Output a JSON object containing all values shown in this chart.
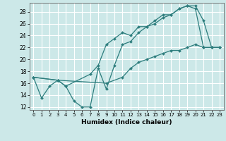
{
  "bg_color": "#cce8e8",
  "grid_color": "#ffffff",
  "line_color": "#2d7d7d",
  "xlabel": "Humidex (Indice chaleur)",
  "xlim": [
    -0.5,
    23.5
  ],
  "ylim": [
    11.5,
    29.5
  ],
  "yticks": [
    12,
    14,
    16,
    18,
    20,
    22,
    24,
    26,
    28
  ],
  "xticks": [
    0,
    1,
    2,
    3,
    4,
    5,
    6,
    7,
    8,
    9,
    10,
    11,
    12,
    13,
    14,
    15,
    16,
    17,
    18,
    19,
    20,
    21,
    22,
    23
  ],
  "line1_x": [
    0,
    1,
    2,
    3,
    4,
    5,
    6,
    7,
    8,
    9,
    10,
    11,
    12,
    13,
    14,
    15,
    16,
    17,
    18,
    19,
    20,
    21,
    22,
    23
  ],
  "line1_y": [
    17.0,
    13.5,
    15.5,
    16.5,
    15.5,
    13.0,
    12.0,
    12.0,
    18.5,
    15.0,
    19.0,
    22.5,
    23.0,
    24.5,
    25.5,
    26.0,
    27.0,
    27.5,
    28.5,
    29.0,
    28.5,
    22.0,
    22.0,
    22.0
  ],
  "line2_x": [
    0,
    3,
    4,
    7,
    8,
    9,
    10,
    11,
    12,
    13,
    14,
    15,
    16,
    17,
    18,
    19,
    20,
    21,
    22,
    23
  ],
  "line2_y": [
    17.0,
    16.5,
    15.5,
    17.5,
    19.0,
    22.5,
    23.5,
    24.5,
    24.0,
    25.5,
    25.5,
    26.5,
    27.5,
    27.5,
    28.5,
    29.0,
    29.0,
    26.5,
    22.0,
    22.0
  ],
  "line3_x": [
    0,
    3,
    9,
    11,
    12,
    13,
    14,
    15,
    16,
    17,
    18,
    19,
    20,
    21,
    22,
    23
  ],
  "line3_y": [
    17.0,
    16.5,
    16.0,
    17.0,
    18.5,
    19.5,
    20.0,
    20.5,
    21.0,
    21.5,
    21.5,
    22.0,
    22.5,
    22.0,
    22.0,
    22.0
  ]
}
